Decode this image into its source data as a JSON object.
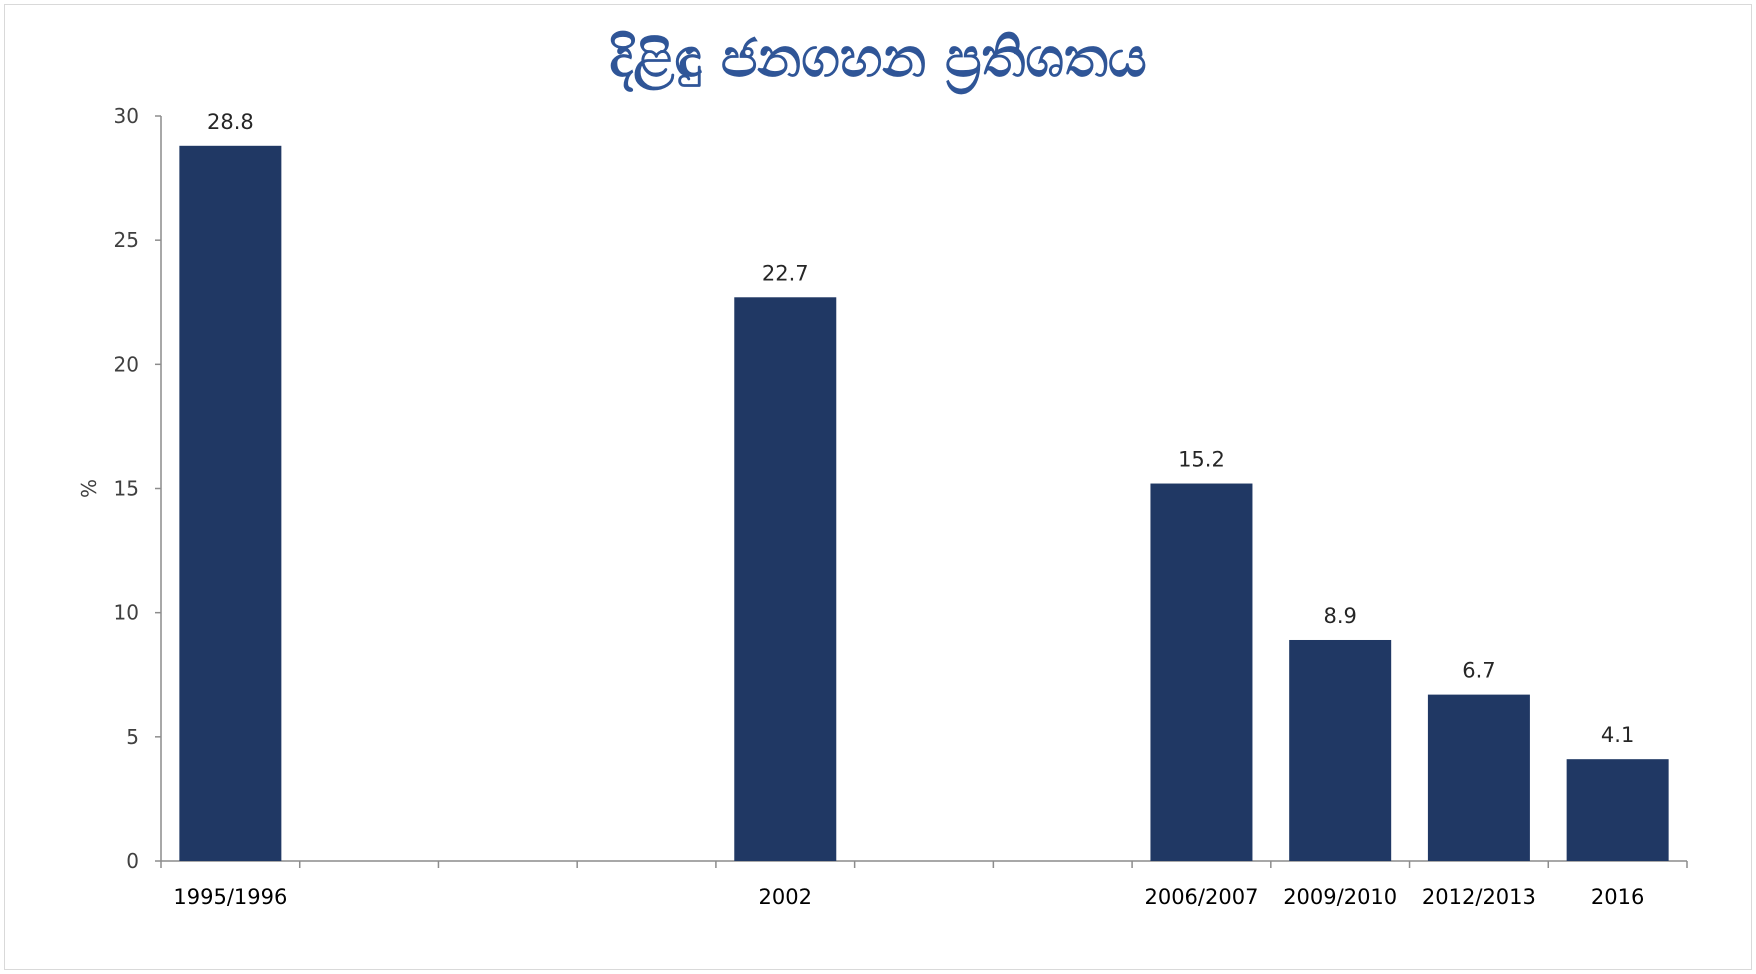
{
  "chart_data": {
    "type": "bar",
    "title": "දිළිඳු ජනගහන ප්‍රතිශතය",
    "xlabel": "",
    "ylabel": "%",
    "ylim": [
      0,
      30
    ],
    "yticks": [
      0,
      5,
      10,
      15,
      20,
      25,
      30
    ],
    "slots": [
      "1995/1996",
      "",
      "",
      "",
      "2002",
      "",
      "",
      "2006/2007",
      "2009/2010",
      "2012/2013",
      "2016"
    ],
    "categories": [
      "1995/1996",
      "2002",
      "2006/2007",
      "2009/2010",
      "2012/2013",
      "2016"
    ],
    "values": [
      28.8,
      22.7,
      15.2,
      8.9,
      6.7,
      4.1
    ],
    "value_labels": [
      "28.8",
      "22.7",
      "15.2",
      "8.9",
      "6.7",
      "4.1"
    ],
    "grid": false,
    "legend": "none"
  },
  "colors": {
    "bar": "#203864",
    "title": "#2f5597",
    "axis": "#8c8c8c"
  }
}
